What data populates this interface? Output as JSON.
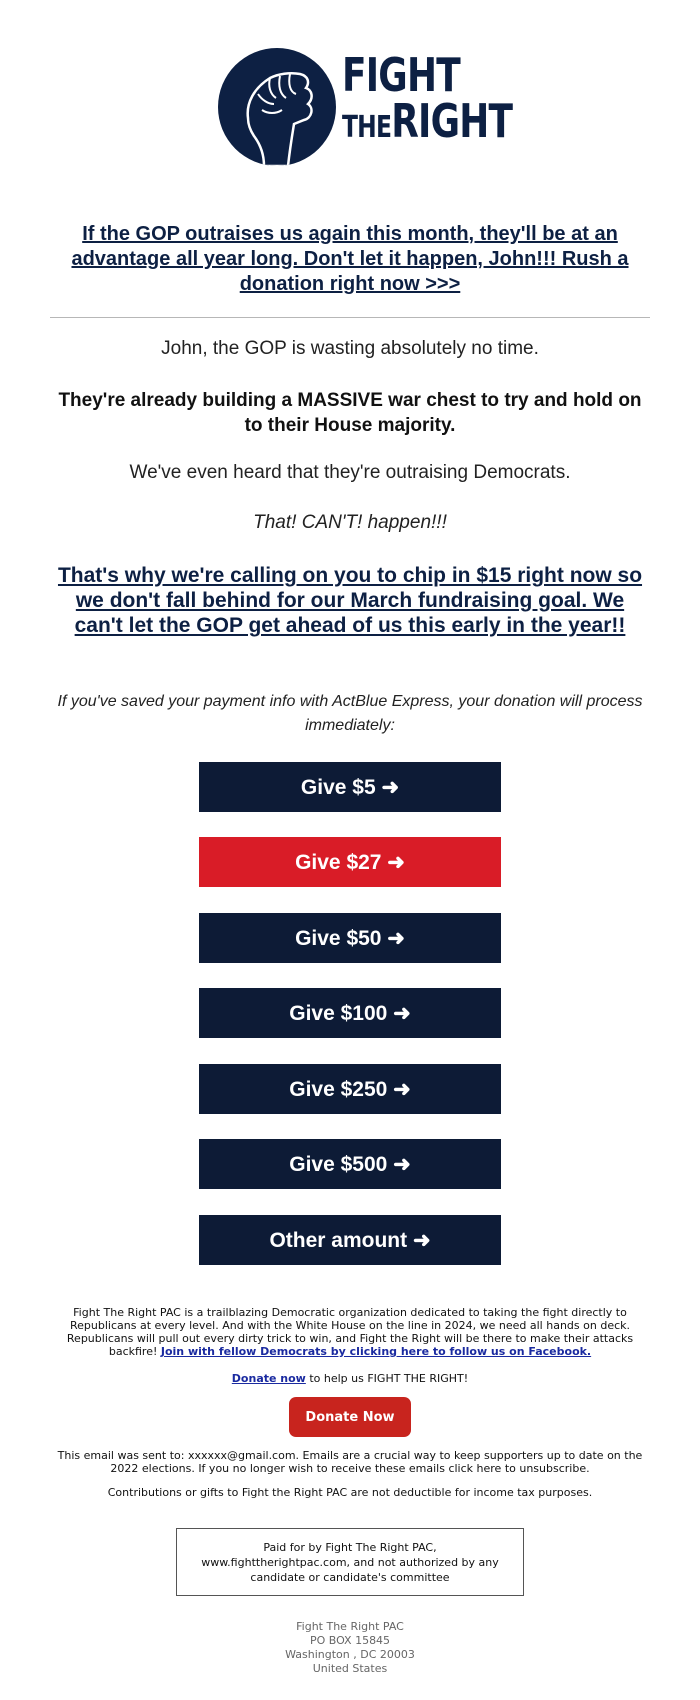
{
  "logo": {
    "line1": "FIGHT",
    "line2_small": "THE",
    "line2_big": "RIGHT"
  },
  "headline": "If the GOP outraises us again this month, they'll be at an advantage all year long. Don't let it happen, John!!! Rush a donation right now >>>",
  "body": {
    "p1": "John, the GOP is wasting absolutely no time.",
    "p2": "They're already building a MASSIVE war chest to try and hold on to their House majority.",
    "p3": "We've even heard that they're outraising Democrats.",
    "p4": "That! CAN'T! happen!!!",
    "p5": "That's why we're calling on you to chip in $15 right now so we don't fall behind for our March fundraising goal. We can't let the GOP get ahead of us this early in the year!!",
    "p6": "If you've saved your payment info with ActBlue Express, your donation will process immediately:"
  },
  "buttons": [
    {
      "label": "Give $5 ➜",
      "color": "#0d1b36"
    },
    {
      "label": "Give $27 ➜",
      "color": "#d91c27"
    },
    {
      "label": "Give $50 ➜",
      "color": "#0d1b36"
    },
    {
      "label": "Give $100 ➜",
      "color": "#0d1b36"
    },
    {
      "label": "Give $250 ➜",
      "color": "#0d1b36"
    },
    {
      "label": "Give $500 ➜",
      "color": "#0d1b36"
    },
    {
      "label": "Other amount ➜",
      "color": "#0d1b36"
    }
  ],
  "footer": {
    "about": "Fight The Right PAC is a trailblazing Democratic organization dedicated to taking the fight directly to Republicans at every level. And with the White House on the line in 2024, we need all hands on deck. Republicans will pull out every dirty trick to win, and Fight the Right will be there to make their attacks backfire!",
    "facebook_link": "Join with fellow Democrats by clicking here to follow us on Facebook.",
    "donate_link": "Donate now",
    "donate_tail": " to help us FIGHT THE RIGHT!",
    "donate_button": "Donate Now",
    "sent_to": "This email was sent to: xxxxxx@gmail.com. Emails are a crucial way to keep supporters up to date on the 2022 elections. If you no longer wish to receive these emails click here to unsubscribe.",
    "tax": "Contributions or gifts to Fight the Right PAC are not deductible for income tax purposes.",
    "paid_for": "Paid for by Fight The Right PAC, www.fighttherightpac.com, and not authorized by any candidate or candidate's committee",
    "address": [
      "Fight The Right PAC",
      "PO BOX 15845",
      "Washington , DC 20003",
      "United States"
    ]
  },
  "colors": {
    "navy": "#0d2043",
    "button_navy": "#0d1b36",
    "red": "#d91c27",
    "donate_red": "#c8241e"
  }
}
